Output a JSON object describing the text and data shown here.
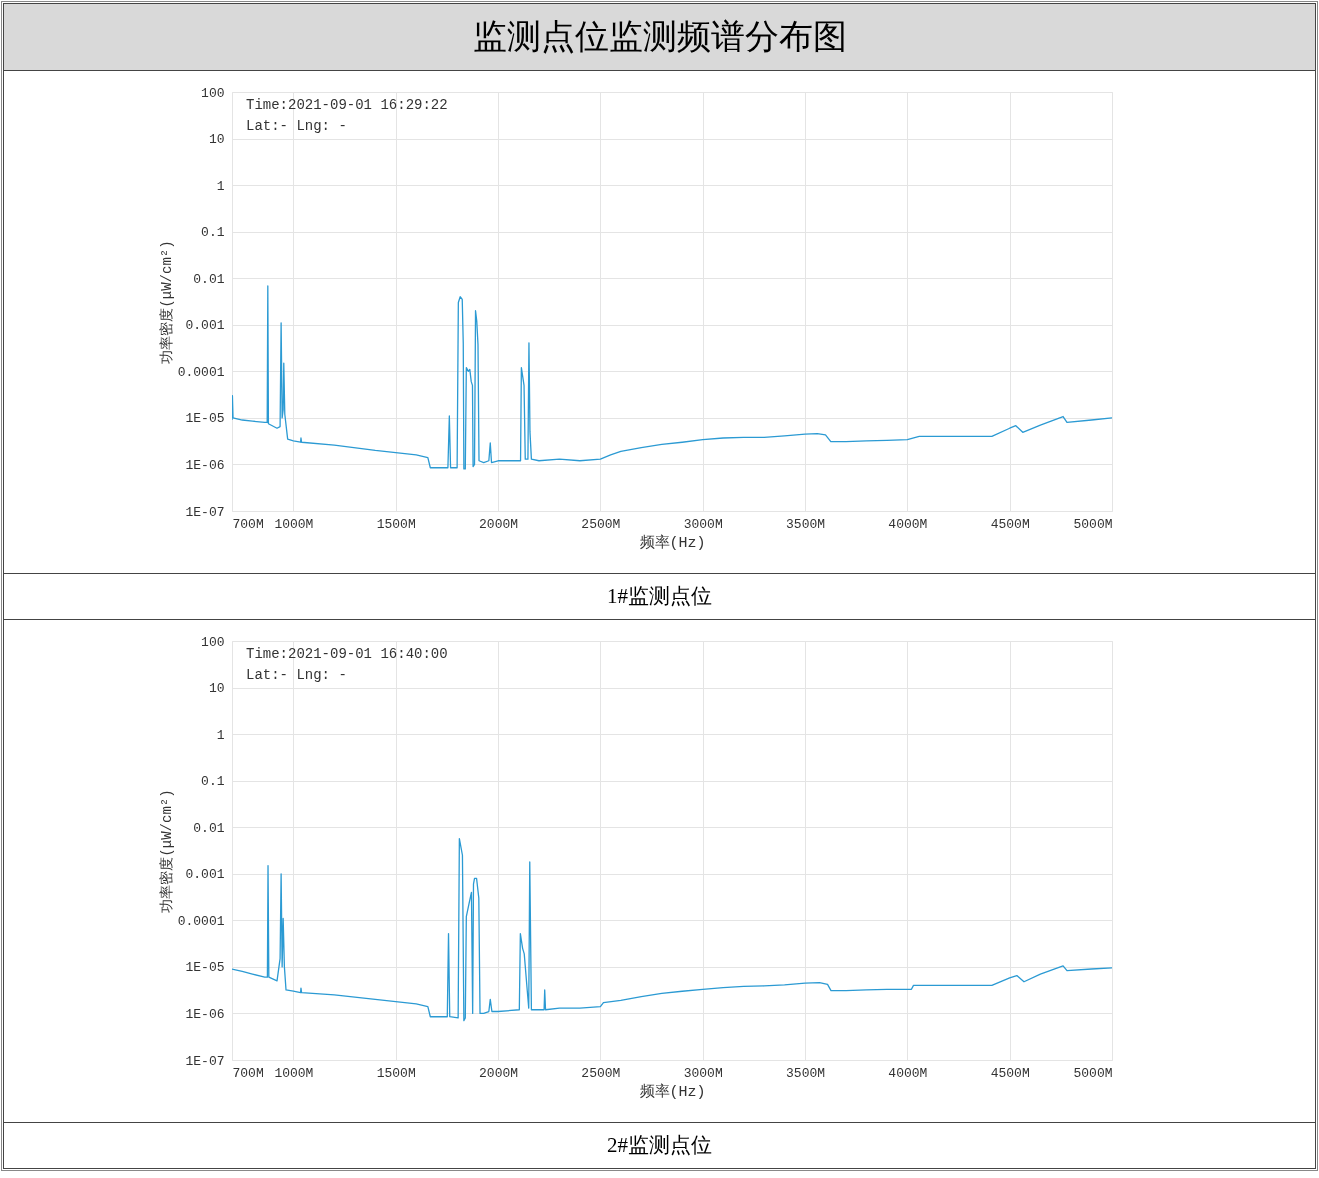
{
  "chart_data": [
    {
      "type": "line",
      "title": "监测点位监测频谱分布图",
      "subtitle": "1#监测点位",
      "xlabel": "频率(Hz)",
      "ylabel": "功率密度(μW/cm²)",
      "annotations": [
        "Time:2021-09-01 16:29:22",
        "Lat:-   Lng: -"
      ],
      "x": [
        700,
        702,
        705,
        750,
        800,
        860,
        872,
        875,
        878,
        920,
        935,
        940,
        945,
        950,
        953,
        958,
        972,
        1000,
        1035,
        1037,
        1040,
        1200,
        1400,
        1500,
        1600,
        1657,
        1669,
        1755,
        1762,
        1768,
        1800,
        1806,
        1815,
        1825,
        1830,
        1833,
        1840,
        1845,
        1855,
        1862,
        1869,
        1875,
        1878,
        1885,
        1890,
        1896,
        1902,
        1907,
        1930,
        1955,
        1962,
        1968,
        2000,
        2110,
        2114,
        2120,
        2127,
        2133,
        2146,
        2151,
        2156,
        2163,
        2200,
        2300,
        2400,
        2500,
        2550,
        2600,
        2700,
        2800,
        2900,
        3000,
        3100,
        3200,
        3300,
        3400,
        3500,
        3560,
        3600,
        3626,
        3700,
        3800,
        3900,
        4000,
        4058,
        4200,
        4413,
        4500,
        4530,
        4564,
        4650,
        4761,
        4780,
        4900,
        5000
      ],
      "series": [
        {
          "color": "#2b9ad3",
          "values": [
            9e-06,
            3e-05,
            1e-05,
            9e-06,
            8.5e-06,
            8e-06,
            8e-06,
            0.0068,
            7.5e-06,
            6e-06,
            6.5e-06,
            0.0011,
            1e-05,
            1.5e-05,
            0.00015,
            1.2e-05,
            3.5e-06,
            3.2e-06,
            3e-06,
            3.7e-06,
            3e-06,
            2.6e-06,
            2e-06,
            1.8e-06,
            1.6e-06,
            1.4e-06,
            8.5e-07,
            8.5e-07,
            1.1e-05,
            8.5e-07,
            8.5e-07,
            0.003,
            0.004,
            0.0035,
            0.0004,
            8e-07,
            8e-07,
            0.00012,
            0.0001,
            0.00011,
            6e-05,
            5e-05,
            9e-07,
            1e-06,
            0.002,
            0.0012,
            0.00038,
            1.2e-06,
            1.1e-06,
            1.2e-06,
            2.9e-06,
            1.1e-06,
            1.2e-06,
            1.2e-06,
            0.00012,
            8e-05,
            5e-05,
            1.3e-06,
            1.3e-06,
            0.00041,
            5e-06,
            1.3e-06,
            1.2e-06,
            1.3e-06,
            1.2e-06,
            1.3e-06,
            1.6e-06,
            1.9e-06,
            2.3e-06,
            2.7e-06,
            3e-06,
            3.4e-06,
            3.7e-06,
            3.8e-06,
            3.8e-06,
            4.1e-06,
            4.5e-06,
            4.6e-06,
            4.3e-06,
            3.1e-06,
            3.1e-06,
            3.2e-06,
            3.3e-06,
            3.4e-06,
            4e-06,
            4e-06,
            4e-06,
            6e-06,
            6.8e-06,
            4.9e-06,
            7e-06,
            1.07e-05,
            8e-06,
            9e-06,
            1e-05
          ]
        }
      ],
      "xlim": [
        700,
        5000
      ],
      "ylim": [
        1e-07,
        100
      ],
      "xticks": [
        {
          "value": 700,
          "label": "700M"
        },
        {
          "value": 1000,
          "label": "1000M"
        },
        {
          "value": 1500,
          "label": "1500M"
        },
        {
          "value": 2000,
          "label": "2000M"
        },
        {
          "value": 2500,
          "label": "2500M"
        },
        {
          "value": 3000,
          "label": "3000M"
        },
        {
          "value": 3500,
          "label": "3500M"
        },
        {
          "value": 4000,
          "label": "4000M"
        },
        {
          "value": 4500,
          "label": "4500M"
        },
        {
          "value": 5000,
          "label": "5000M"
        }
      ],
      "yticks": [
        {
          "value": 1e-07,
          "label": "1E-07"
        },
        {
          "value": 1e-06,
          "label": "1E-06"
        },
        {
          "value": 1e-05,
          "label": "1E-05"
        },
        0.0001,
        0.001,
        0.01,
        0.1,
        1,
        10,
        100
      ],
      "log": true,
      "grid": true
    },
    {
      "type": "line",
      "subtitle": "2#监测点位",
      "xlabel": "频率(Hz)",
      "ylabel": "功率密度(μW/cm²)",
      "annotations": [
        "Time:2021-09-01 16:40:00",
        "Lat:-   Lng: -"
      ],
      "x": [
        700,
        750,
        800,
        860,
        873,
        876,
        880,
        920,
        935,
        940,
        945,
        950,
        956,
        964,
        1000,
        1035,
        1037,
        1040,
        1200,
        1400,
        1500,
        1600,
        1657,
        1669,
        1752,
        1758,
        1764,
        1805,
        1811,
        1826,
        1833,
        1840,
        1845,
        1860,
        1870,
        1876,
        1880,
        1885,
        1895,
        1906,
        1912,
        1930,
        1955,
        1962,
        1970,
        2000,
        2104,
        2109,
        2120,
        2128,
        2143,
        2150,
        2155,
        2163,
        2225,
        2228,
        2232,
        2300,
        2400,
        2500,
        2515,
        2600,
        2700,
        2800,
        2900,
        3000,
        3100,
        3200,
        3300,
        3400,
        3500,
        3571,
        3610,
        3627,
        3700,
        3800,
        3900,
        4020,
        4030,
        4200,
        4413,
        4500,
        4535,
        4570,
        4650,
        4761,
        4780,
        4900,
        5000
      ],
      "series": [
        {
          "color": "#2b9ad3",
          "values": [
            9e-06,
            8e-06,
            7e-06,
            6e-06,
            6e-06,
            0.0015,
            6e-06,
            5e-06,
            1.5e-05,
            0.001,
            1e-05,
            0.00011,
            1e-05,
            3.2e-06,
            3e-06,
            2.8e-06,
            3.5e-06,
            2.8e-06,
            2.5e-06,
            2e-06,
            1.8e-06,
            1.6e-06,
            1.4e-06,
            8.5e-07,
            8.5e-07,
            5.2e-05,
            8.5e-07,
            8e-07,
            0.0057,
            0.0025,
            7e-07,
            8e-07,
            0.00012,
            0.00025,
            0.0004,
            1e-06,
            0.0006,
            0.0008,
            0.0008,
            0.0003,
            1e-06,
            1e-06,
            1.1e-06,
            2e-06,
            1.1e-06,
            1.1e-06,
            1.2e-06,
            5.2e-05,
            2.5e-05,
            1.9e-05,
            3e-06,
            1.3e-06,
            0.0018,
            1.2e-06,
            1.2e-06,
            3.2e-06,
            1.2e-06,
            1.3e-06,
            1.3e-06,
            1.4e-06,
            1.7e-06,
            1.9e-06,
            2.3e-06,
            2.7e-06,
            3e-06,
            3.3e-06,
            3.6e-06,
            3.8e-06,
            3.9e-06,
            4.1e-06,
            4.5e-06,
            4.6e-06,
            4.2e-06,
            3.1e-06,
            3.1e-06,
            3.2e-06,
            3.3e-06,
            3.3e-06,
            4e-06,
            4e-06,
            4e-06,
            5.8e-06,
            6.5e-06,
            4.8e-06,
            7e-06,
            1.05e-05,
            8.3e-06,
            9e-06,
            9.5e-06
          ]
        }
      ],
      "xlim": [
        700,
        5000
      ],
      "ylim": [
        1e-07,
        100
      ],
      "xticks": [
        {
          "value": 700,
          "label": "700M"
        },
        {
          "value": 1000,
          "label": "1000M"
        },
        {
          "value": 1500,
          "label": "1500M"
        },
        {
          "value": 2000,
          "label": "2000M"
        },
        {
          "value": 2500,
          "label": "2500M"
        },
        {
          "value": 3000,
          "label": "3000M"
        },
        {
          "value": 3500,
          "label": "3500M"
        },
        {
          "value": 4000,
          "label": "4000M"
        },
        {
          "value": 4500,
          "label": "4500M"
        },
        {
          "value": 5000,
          "label": "5000M"
        }
      ],
      "yticks": [
        {
          "value": 1e-07,
          "label": "1E-07"
        },
        {
          "value": 1e-06,
          "label": "1E-06"
        },
        {
          "value": 1e-05,
          "label": "1E-05"
        },
        0.0001,
        0.001,
        0.01,
        0.1,
        1,
        10,
        100
      ],
      "log": true,
      "grid": true
    }
  ]
}
